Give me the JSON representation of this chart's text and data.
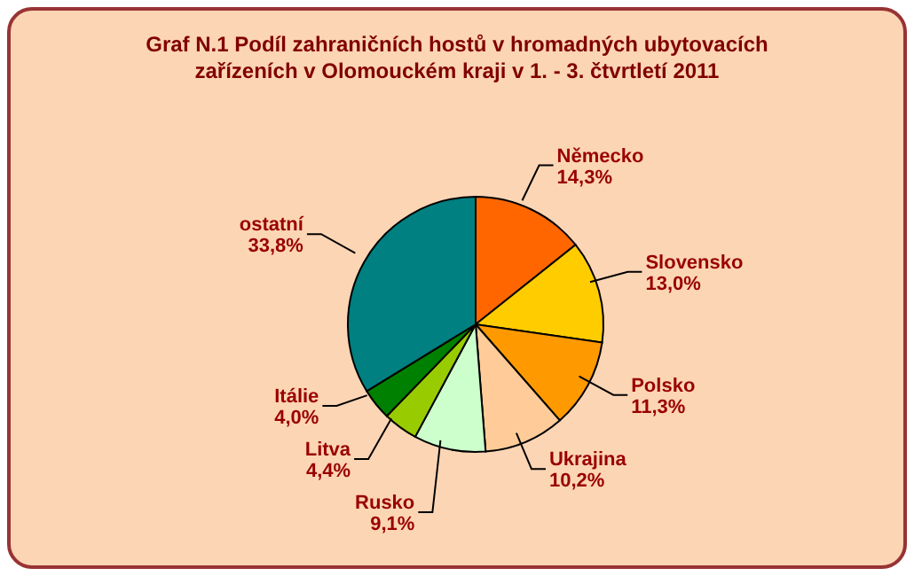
{
  "chart_data": {
    "type": "pie",
    "title": "Graf N.1  Podíl zahraničních hostů v hromadných ubytovacích zařízeních v Olomouckém kraji v 1.  - 3. čtvrtletí  2011",
    "categories": [
      "Německo",
      "Slovensko",
      "Polsko",
      "Ukrajina",
      "Rusko",
      "Litva",
      "Itálie",
      "ostatní"
    ],
    "values": [
      14.3,
      13.0,
      11.3,
      10.2,
      9.1,
      4.4,
      4.0,
      33.8
    ],
    "value_labels": [
      "14,3%",
      "13,0%",
      "11,3%",
      "10,2%",
      "9,1%",
      "4,4%",
      "4,0%",
      "33,8%"
    ],
    "colors": [
      "#ff6600",
      "#ffcc00",
      "#ff9900",
      "#ffcc99",
      "#ccffcc",
      "#99cc00",
      "#008000",
      "#008080"
    ],
    "legend": false
  }
}
